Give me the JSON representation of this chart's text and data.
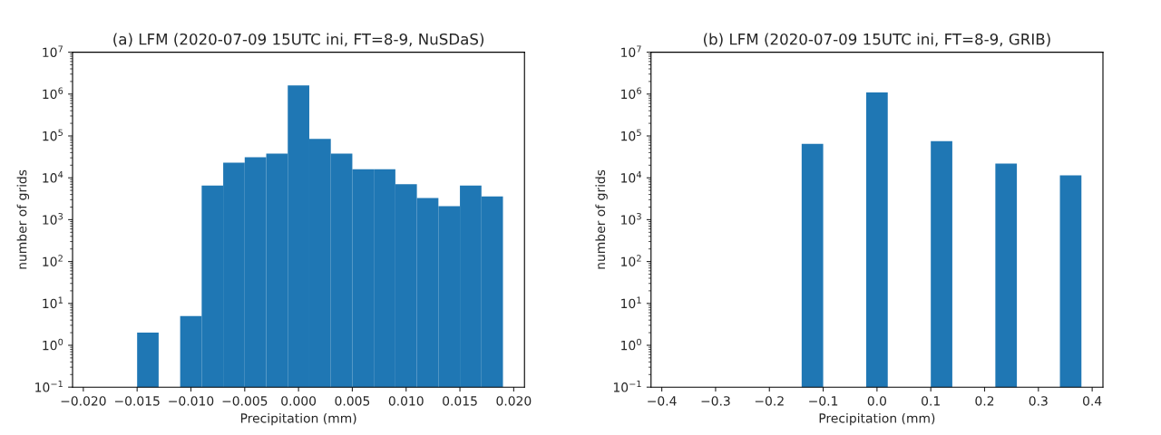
{
  "chart_data": [
    {
      "type": "histogram",
      "title": "(a) LFM (2020-07-09 15UTC ini, FT=8-9, NuSDaS)",
      "xlabel": "Precipitation (mm)",
      "ylabel": "number of grids",
      "color": "#1f77b4",
      "bins": [
        -0.015,
        -0.013,
        -0.011,
        -0.009,
        -0.007,
        -0.005,
        -0.003,
        -0.001,
        0.001,
        0.003,
        0.005,
        0.007,
        0.009,
        0.011,
        0.013,
        0.015,
        0.017,
        0.019
      ],
      "values": [
        2,
        null,
        5,
        6500,
        23000,
        31000,
        38000,
        1600000,
        85000,
        38000,
        16000,
        16000,
        7000,
        3300,
        2100,
        6500,
        3600
      ],
      "log": "y",
      "xlim": [
        -0.021,
        0.021
      ],
      "xticks": [
        {
          "value": -0.02,
          "label": "−0.020"
        },
        {
          "value": -0.015,
          "label": "−0.015"
        },
        {
          "value": -0.01,
          "label": "−0.010"
        },
        {
          "value": -0.005,
          "label": "−0.005"
        },
        {
          "value": 0.0,
          "label": "0.000"
        },
        {
          "value": 0.005,
          "label": "0.005"
        },
        {
          "value": 0.01,
          "label": "0.010"
        },
        {
          "value": 0.015,
          "label": "0.015"
        },
        {
          "value": 0.02,
          "label": "0.020"
        }
      ],
      "ylim": [
        0.1,
        10000000
      ],
      "yticks": [
        {
          "value": 0.1,
          "label": "10$^{−1}$"
        },
        {
          "value": 1,
          "label": "10$^{0}$"
        },
        {
          "value": 10,
          "label": "10$^{1}$"
        },
        {
          "value": 100,
          "label": "10$^{2}$"
        },
        {
          "value": 1000,
          "label": "10$^{3}$"
        },
        {
          "value": 10000,
          "label": "10$^{4}$"
        },
        {
          "value": 100000,
          "label": "10$^{5}$"
        },
        {
          "value": 1000000,
          "label": "10$^{6}$"
        },
        {
          "value": 10000000,
          "label": "10$^{7}$"
        }
      ],
      "grid": false,
      "legend": false
    },
    {
      "type": "histogram",
      "title": "(b) LFM (2020-07-09 15UTC ini, FT=8-9, GRIB)",
      "xlabel": "Precipitation (mm)",
      "ylabel": "number of grids",
      "color": "#1f77b4",
      "bins": [
        -0.14,
        -0.1,
        -0.06,
        -0.02,
        0.02,
        0.06,
        0.1,
        0.14,
        0.18,
        0.22,
        0.26,
        0.3,
        0.34,
        0.38
      ],
      "values": [
        65000,
        null,
        null,
        1100000,
        null,
        null,
        75000,
        null,
        null,
        22000,
        null,
        null,
        11500
      ],
      "log": "y",
      "xlim": [
        -0.42,
        0.42
      ],
      "xticks": [
        {
          "value": -0.4,
          "label": "−0.4"
        },
        {
          "value": -0.3,
          "label": "−0.3"
        },
        {
          "value": -0.2,
          "label": "−0.2"
        },
        {
          "value": -0.1,
          "label": "−0.1"
        },
        {
          "value": 0.0,
          "label": "0.0"
        },
        {
          "value": 0.1,
          "label": "0.1"
        },
        {
          "value": 0.2,
          "label": "0.2"
        },
        {
          "value": 0.3,
          "label": "0.3"
        },
        {
          "value": 0.4,
          "label": "0.4"
        }
      ],
      "ylim": [
        0.1,
        10000000
      ],
      "yticks": [
        {
          "value": 0.1,
          "label": "10$^{−1}$"
        },
        {
          "value": 1,
          "label": "10$^{0}$"
        },
        {
          "value": 10,
          "label": "10$^{1}$"
        },
        {
          "value": 100,
          "label": "10$^{2}$"
        },
        {
          "value": 1000,
          "label": "10$^{3}$"
        },
        {
          "value": 10000,
          "label": "10$^{4}$"
        },
        {
          "value": 100000,
          "label": "10$^{5}$"
        },
        {
          "value": 1000000,
          "label": "10$^{6}$"
        },
        {
          "value": 10000000,
          "label": "10$^{7}$"
        }
      ],
      "grid": false,
      "legend": false
    }
  ]
}
